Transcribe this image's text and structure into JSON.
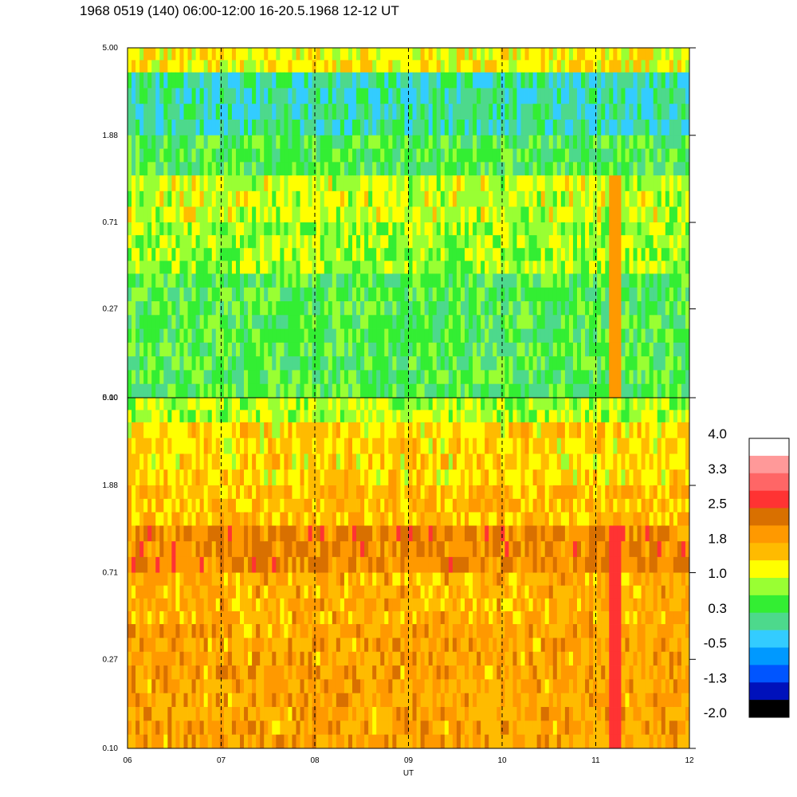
{
  "title": "1968 0519 (140) 06:00-12:00 16-20.5.1968  12-12 UT",
  "chart_data": {
    "type": "heatmap",
    "xlabel": "UT",
    "x_ticks": [
      "06",
      "07",
      "08",
      "09",
      "10",
      "11",
      "12"
    ],
    "xlim": [
      6,
      12
    ],
    "y_scale": "log",
    "y_ticks": [
      "0.10",
      "0.27",
      "0.71",
      "1.88",
      "5.00"
    ],
    "ylim": [
      0.1,
      5.0
    ],
    "vertical_dashed_lines_at": [
      7,
      8,
      9,
      10,
      11
    ],
    "panels": [
      {
        "panel": "upper",
        "band_rows": [
          {
            "freq_range": [
              3.8,
              5.0
            ],
            "level": 1.2
          },
          {
            "freq_range": [
              1.88,
              3.8
            ],
            "level": 0.0
          },
          {
            "freq_range": [
              1.2,
              1.88
            ],
            "level": 0.4
          },
          {
            "freq_range": [
              0.71,
              1.2
            ],
            "level": 1.0
          },
          {
            "freq_range": [
              0.4,
              0.71
            ],
            "level": 0.8
          },
          {
            "freq_range": [
              0.1,
              0.4
            ],
            "level": 0.4
          }
        ],
        "event": {
          "time_range": [
            11.15,
            11.25
          ],
          "level": 1.8
        }
      },
      {
        "panel": "lower",
        "band_rows": [
          {
            "freq_range": [
              3.8,
              5.0
            ],
            "level": 0.9
          },
          {
            "freq_range": [
              1.88,
              3.8
            ],
            "level": 1.4
          },
          {
            "freq_range": [
              1.2,
              1.88
            ],
            "level": 1.6
          },
          {
            "freq_range": [
              0.71,
              1.2
            ],
            "level": 2.1
          },
          {
            "freq_range": [
              0.4,
              0.71
            ],
            "level": 1.7
          },
          {
            "freq_range": [
              0.1,
              0.4
            ],
            "level": 1.8
          }
        ],
        "event": {
          "time_range": [
            11.15,
            11.25
          ],
          "level": 2.7
        }
      }
    ],
    "colorbar": {
      "labels": [
        "4.0",
        "3.3",
        "2.5",
        "1.8",
        "1.0",
        "0.3",
        "-0.5",
        "-1.3",
        "-2.0"
      ],
      "colors": [
        "#ffffff",
        "#ff9999",
        "#ff6666",
        "#ff3333",
        "#d97000",
        "#ff9900",
        "#ffbb00",
        "#ffff00",
        "#99ff33",
        "#33ee33",
        "#4dd98c",
        "#33ccff",
        "#0099ff",
        "#0055ff",
        "#0011bb",
        "#000000"
      ]
    }
  }
}
